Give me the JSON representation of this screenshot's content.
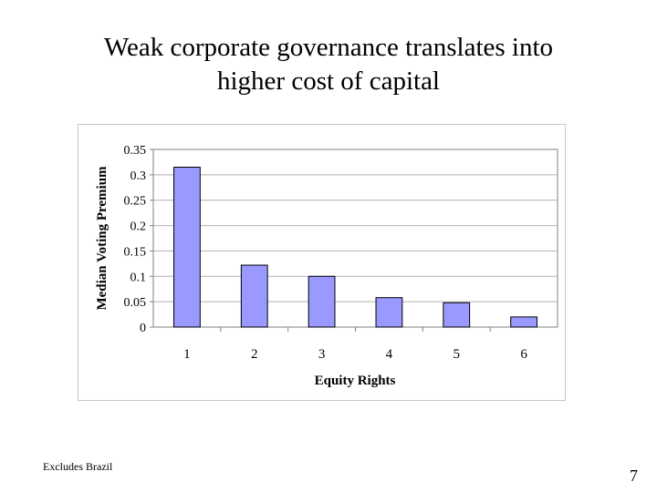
{
  "slide": {
    "title_lines": [
      "Weak corporate governance translates into",
      "higher cost of capital"
    ],
    "footnote": "Excludes Brazil",
    "page_number": "7"
  },
  "chart_data": {
    "type": "bar",
    "title": "",
    "xlabel": "Equity Rights",
    "ylabel": "Median Voting Premium",
    "categories": [
      "1",
      "2",
      "3",
      "4",
      "5",
      "6"
    ],
    "values": [
      0.315,
      0.122,
      0.1,
      0.058,
      0.048,
      0.02
    ],
    "ylim": [
      0,
      0.35
    ],
    "yticks": [
      "0",
      "0.05",
      "0.1",
      "0.15",
      "0.2",
      "0.25",
      "0.3",
      "0.35"
    ],
    "grid": true,
    "bar_color": "#9999ff",
    "legend": "none"
  }
}
